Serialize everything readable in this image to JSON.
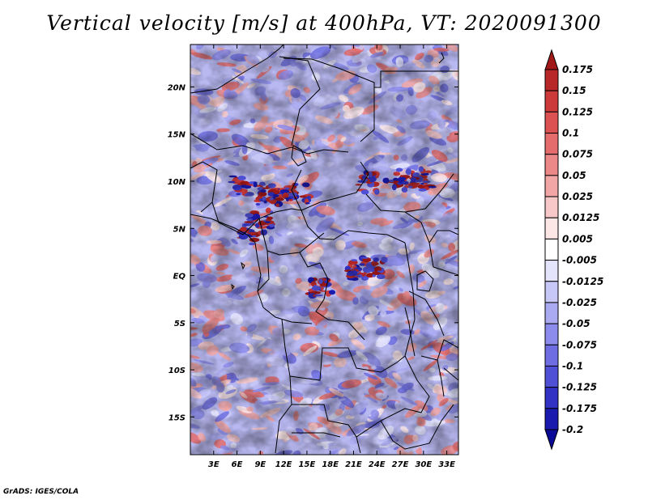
{
  "title": "Vertical velocity [m/s] at 400hPa, VT: 2020091300",
  "footer": "GrADS: IGES/COLA",
  "map": {
    "projection": "latlon",
    "lon_range": [
      0,
      34.5
    ],
    "lat_range": [
      -19,
      24.5
    ],
    "lat_ticks": [
      "20N",
      "15N",
      "10N",
      "5N",
      "EQ",
      "5S",
      "10S",
      "15S"
    ],
    "lat_tick_values": [
      20,
      15,
      10,
      5,
      0,
      -5,
      -10,
      -15
    ],
    "lon_ticks": [
      "3E",
      "6E",
      "9E",
      "12E",
      "15E",
      "18E",
      "21E",
      "24E",
      "27E",
      "30E",
      "33E"
    ],
    "lon_tick_values": [
      3,
      6,
      9,
      12,
      15,
      18,
      21,
      24,
      27,
      30,
      33
    ],
    "field": "vertical velocity",
    "level": "400hPa",
    "valid_time": "2020091300"
  },
  "colorbar": {
    "levels": [
      "0.175",
      "0.15",
      "0.125",
      "0.1",
      "0.075",
      "0.05",
      "0.025",
      "0.0125",
      "0.005",
      "-0.005",
      "-0.0125",
      "-0.025",
      "-0.05",
      "-0.075",
      "-0.1",
      "-0.125",
      "-0.175",
      "-0.2"
    ],
    "colors": [
      "#a01818",
      "#b92828",
      "#cc3a3a",
      "#dc5252",
      "#e46c6c",
      "#ec8888",
      "#f2a6a6",
      "#f8c8c8",
      "#fce6e6",
      "#ffffff",
      "#e4e4fc",
      "#c8c8f8",
      "#aaaaf2",
      "#8c8cec",
      "#6e6ee2",
      "#5050d6",
      "#3232c4",
      "#1a1aae",
      "#0a0a96"
    ]
  }
}
